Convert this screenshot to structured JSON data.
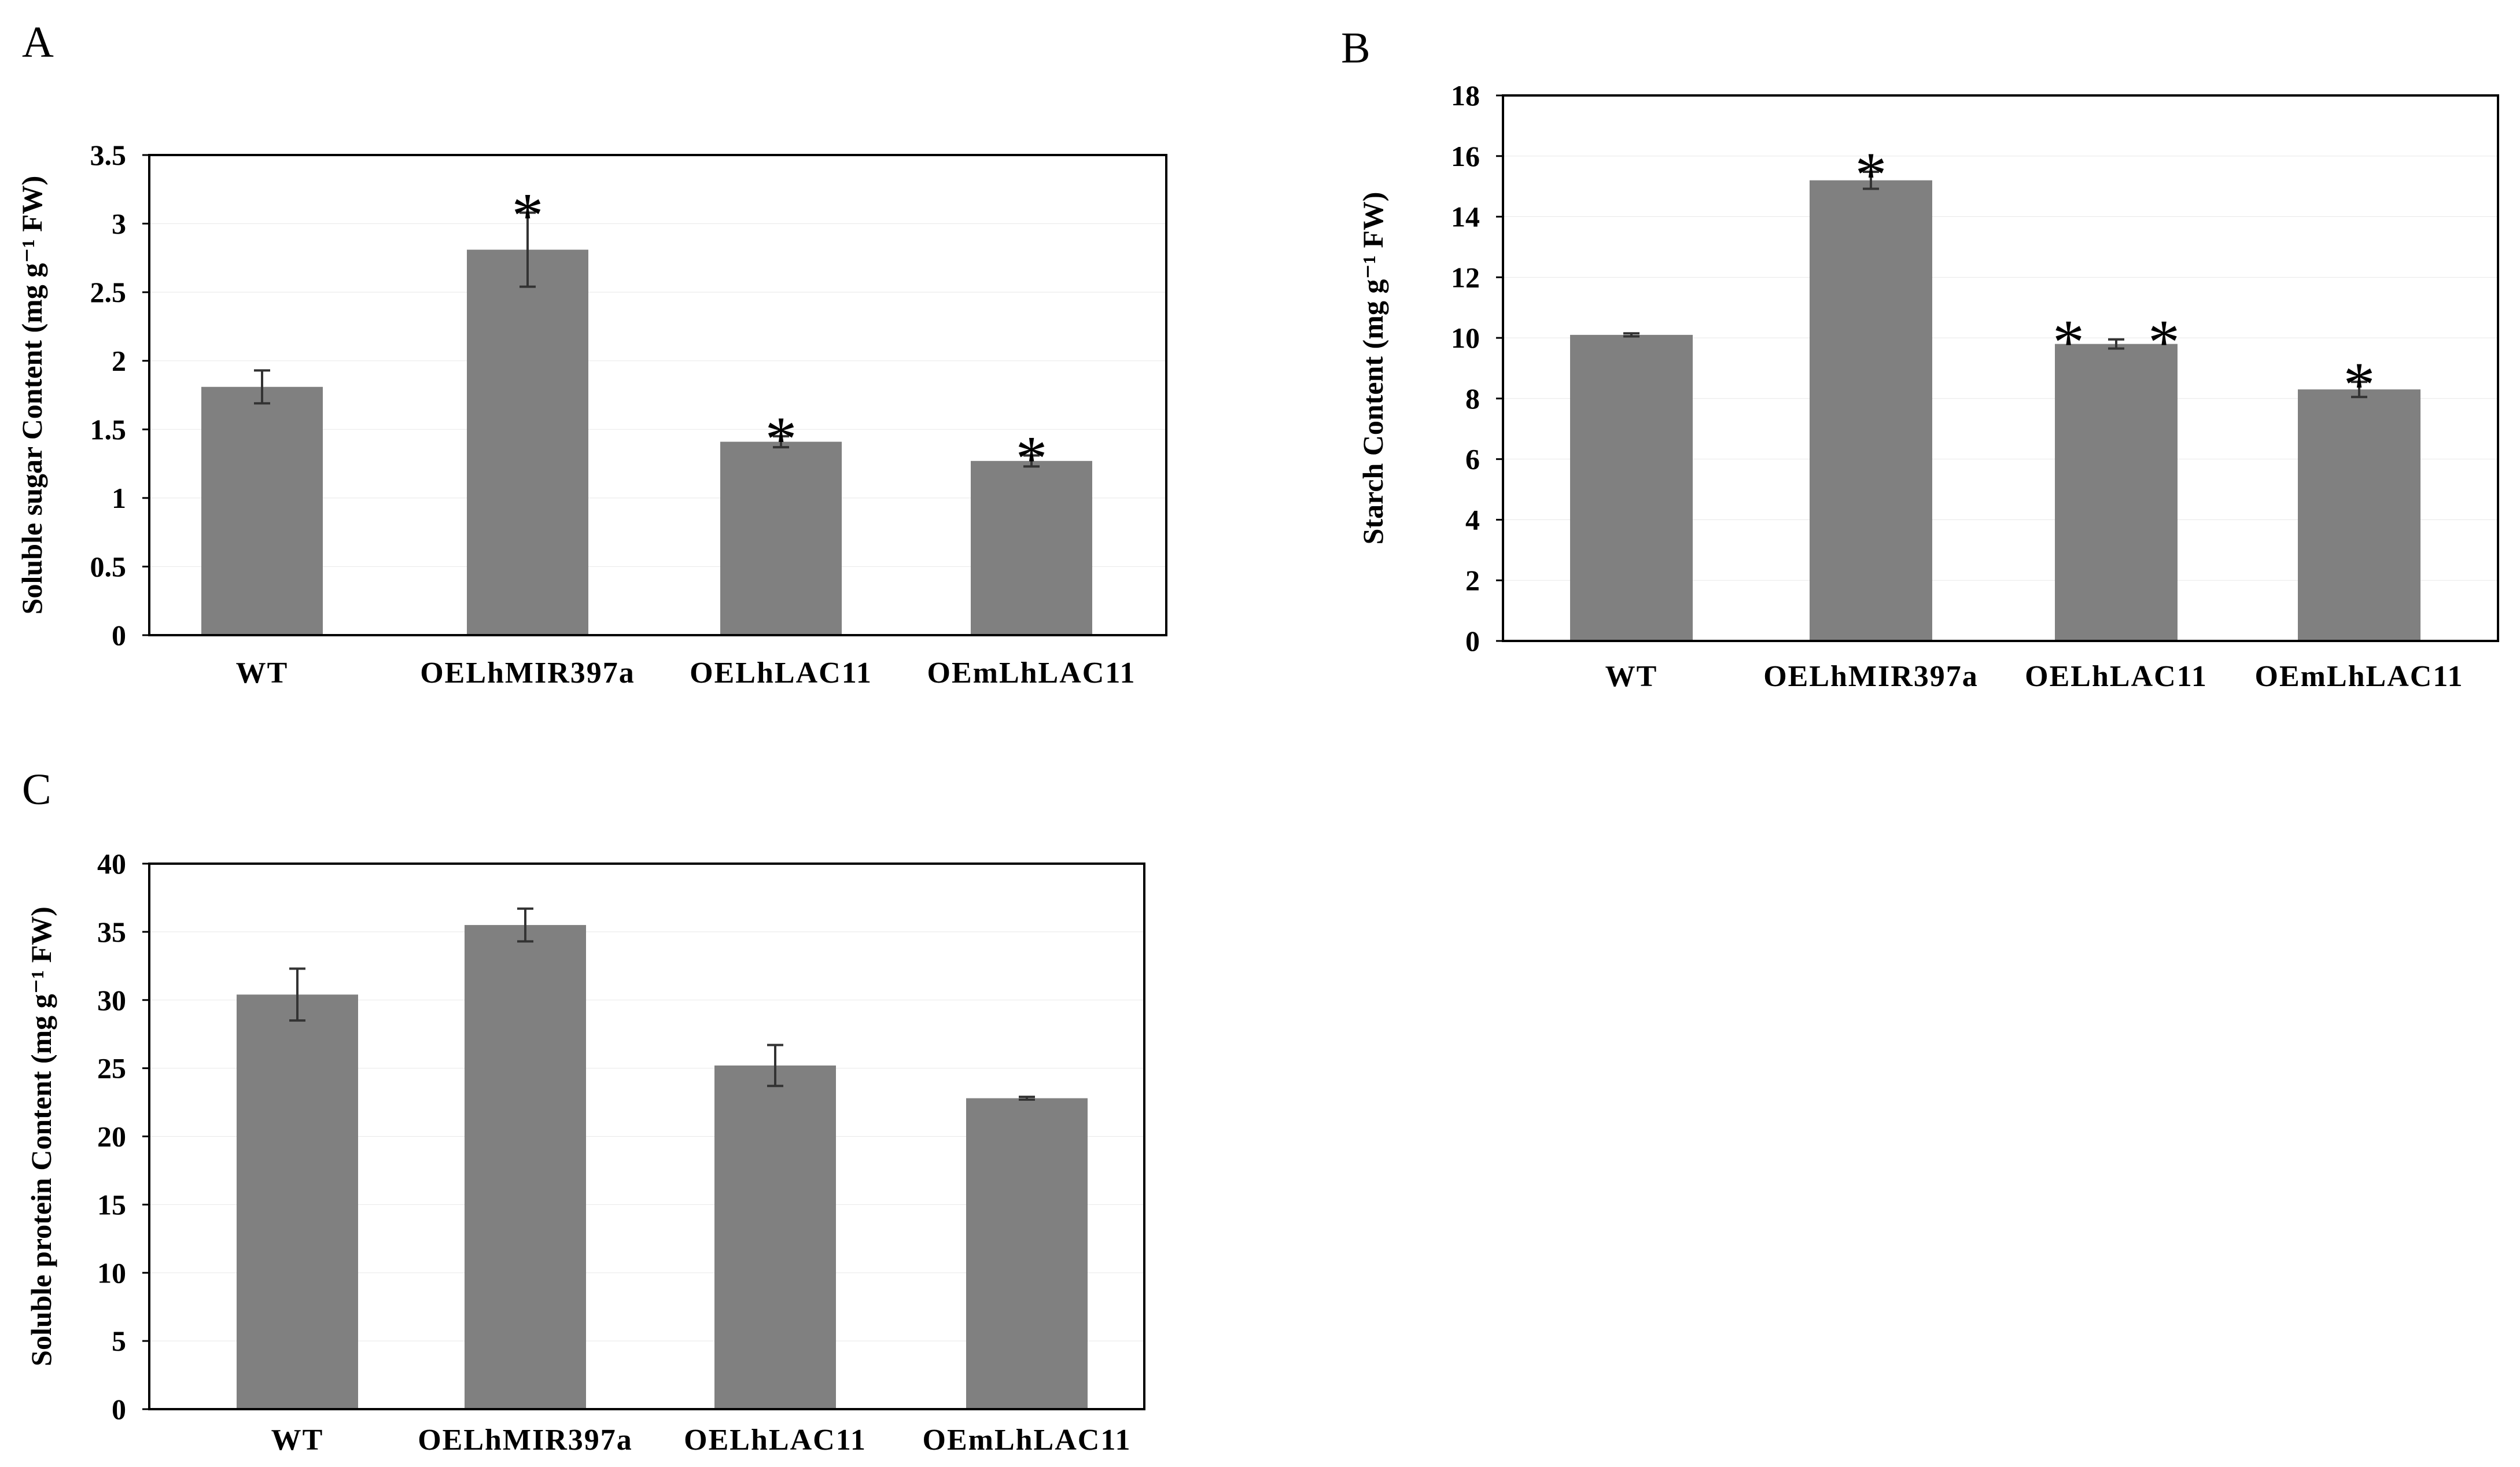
{
  "figure": {
    "panels": [
      "A",
      "B",
      "C"
    ],
    "colors": {
      "bar": "#808080",
      "frame": "#000000",
      "errorbar": "#333333"
    }
  },
  "chart_data": [
    {
      "id": "A",
      "type": "bar",
      "categories": [
        "WT",
        "OELhMIR397a",
        "OELhLAC11",
        "OEmLhLAC11"
      ],
      "values": [
        1.81,
        2.81,
        1.41,
        1.27
      ],
      "errors": [
        0.12,
        0.27,
        0.04,
        0.04
      ],
      "significance": [
        "",
        "*",
        "*",
        "*"
      ],
      "ylabel": "Soluble sugar Content (mg g⁻¹ FW)",
      "ylim": [
        0,
        3.5
      ],
      "yticks": [
        0,
        0.5,
        1,
        1.5,
        2,
        2.5,
        3,
        3.5
      ],
      "ytick_labels": [
        "0",
        "0.5",
        "1",
        "1.5",
        "2",
        "2.5",
        "3",
        "3.5"
      ]
    },
    {
      "id": "B",
      "type": "bar",
      "categories": [
        "WT",
        "OELhMIR397a",
        "OELhLAC11",
        "OEmLhLAC11"
      ],
      "values": [
        10.1,
        15.2,
        9.8,
        8.3
      ],
      "errors": [
        0.05,
        0.28,
        0.15,
        0.25
      ],
      "significance": [
        "",
        "*",
        "* *",
        "*"
      ],
      "ylabel": "Starch Content (mg g⁻¹ FW)",
      "ylim": [
        0,
        18
      ],
      "yticks": [
        0,
        2,
        4,
        6,
        8,
        10,
        12,
        14,
        16,
        18
      ],
      "ytick_labels": [
        "0",
        "2",
        "4",
        "6",
        "8",
        "10",
        "12",
        "14",
        "16",
        "18"
      ]
    },
    {
      "id": "C",
      "type": "bar",
      "categories": [
        "WT",
        "OELhMIR397a",
        "OELhLAC11",
        "OEmLhLAC11"
      ],
      "values": [
        30.4,
        35.5,
        25.2,
        22.8
      ],
      "errors": [
        1.9,
        1.2,
        1.5,
        0.1
      ],
      "significance": [
        "",
        "",
        "",
        ""
      ],
      "ylabel": "Soluble protein Content (mg g⁻¹ FW)",
      "ylim": [
        0,
        40
      ],
      "yticks": [
        0,
        5,
        10,
        15,
        20,
        25,
        30,
        35,
        40
      ],
      "ytick_labels": [
        "0",
        "5",
        "10",
        "15",
        "20",
        "25",
        "30",
        "35",
        "40"
      ]
    }
  ]
}
